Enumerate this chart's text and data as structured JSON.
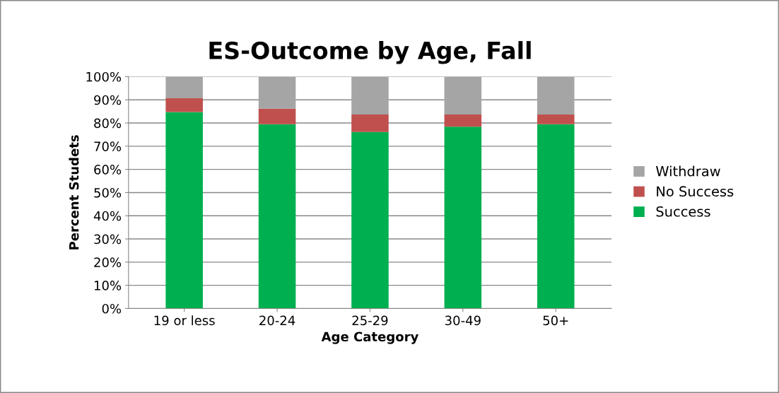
{
  "chart_data": {
    "type": "bar",
    "title": "ES-Outcome by Age, Fall",
    "xlabel": "Age Category",
    "ylabel": "Percent Studets",
    "categories": [
      "19 or less",
      "20-24",
      "25-29",
      "30-49",
      "50+"
    ],
    "stacked": true,
    "series": [
      {
        "name": "Success",
        "color": "#00b050",
        "values": [
          84.7,
          79.5,
          76.1,
          78.4,
          79.5
        ]
      },
      {
        "name": "No Success",
        "color": "#c0504d",
        "values": [
          6.0,
          6.7,
          7.6,
          5.3,
          4.2
        ]
      },
      {
        "name": "Withdraw",
        "color": "#a5a5a5",
        "values": [
          9.3,
          13.8,
          16.3,
          16.3,
          16.3
        ]
      }
    ],
    "ylim": [
      0,
      100
    ],
    "yticks": [
      {
        "value": 0,
        "label": "0%"
      },
      {
        "value": 10,
        "label": "10%"
      },
      {
        "value": 20,
        "label": "20%"
      },
      {
        "value": 30,
        "label": "30%"
      },
      {
        "value": 40,
        "label": "40%"
      },
      {
        "value": 50,
        "label": "50%"
      },
      {
        "value": 60,
        "label": "60%"
      },
      {
        "value": 70,
        "label": "70%"
      },
      {
        "value": 80,
        "label": "80%"
      },
      {
        "value": 90,
        "label": "90%"
      },
      {
        "value": 100,
        "label": "100%"
      }
    ],
    "grid": "y",
    "legend": "right"
  }
}
